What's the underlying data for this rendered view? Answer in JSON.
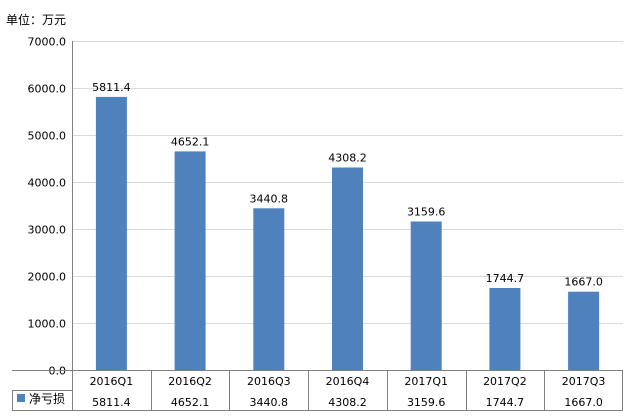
{
  "chart_data": {
    "type": "bar",
    "unit_label": "单位：万元",
    "categories": [
      "2016Q1",
      "2016Q2",
      "2016Q3",
      "2016Q4",
      "2017Q1",
      "2017Q2",
      "2017Q3"
    ],
    "series": [
      {
        "name": "净亏损",
        "values": [
          5811.4,
          4652.1,
          3440.8,
          4308.2,
          3159.6,
          1744.7,
          1667.0
        ],
        "value_labels": [
          "5811.4",
          "4652.1",
          "3440.8",
          "4308.2",
          "3159.6",
          "1744.7",
          "1667.0"
        ],
        "color": "#4F81BD"
      }
    ],
    "ylim": [
      0,
      7000
    ],
    "yticks": [
      "0.0",
      "1000.0",
      "2000.0",
      "3000.0",
      "4000.0",
      "5000.0",
      "6000.0",
      "7000.0"
    ],
    "grid": true,
    "legend": "data-table-left",
    "colors": {
      "bar": "#4F81BD",
      "grid": "#D9D9D9",
      "axis": "#808080"
    }
  }
}
